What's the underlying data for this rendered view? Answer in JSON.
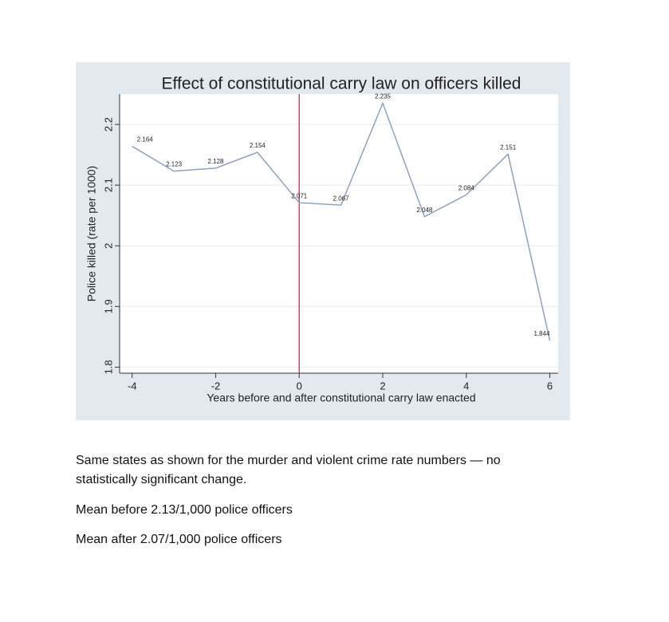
{
  "chart_data": {
    "type": "line",
    "title": "Effect of constitutional carry law on officers killed",
    "x_label": "Years before and after constitutional carry law enacted",
    "y_label": "Police killed (rate per 1000)",
    "x": [
      -4,
      -3,
      -2,
      -1,
      0,
      1,
      2,
      3,
      4,
      5,
      6
    ],
    "series": [
      {
        "name": "Police killed",
        "color": "#8ea2bd",
        "values": [
          2.164,
          2.123,
          2.128,
          2.154,
          2.071,
          2.067,
          2.235,
          2.048,
          2.084,
          2.151,
          1.844
        ]
      }
    ],
    "xlim": [
      -4.3,
      6.2
    ],
    "xticks": [
      -4,
      -2,
      0,
      2,
      4,
      6
    ],
    "ylim": [
      1.79,
      2.25
    ],
    "yticks": [
      1.8,
      1.9,
      2,
      2.1,
      2.2
    ],
    "grid": true,
    "vline": 0,
    "vline_color": "#d0455a"
  },
  "paragraphs": [
    "Same states as shown for the murder and violent crime rate numbers — no statistically significant change.",
    "Mean before 2.13/1,000 police officers",
    "Mean after 2.07/1,000 police officers"
  ]
}
